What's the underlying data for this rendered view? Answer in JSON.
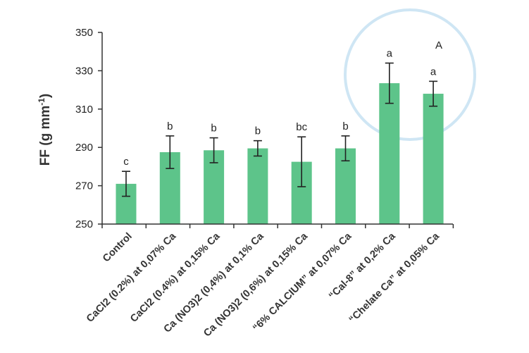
{
  "chart_data": {
    "type": "bar",
    "ylabel": "FF (g mm",
    "ylabel_sup": "-1",
    "ylabel_close": ")",
    "ylim": [
      250,
      350
    ],
    "yticks": [
      250,
      270,
      290,
      310,
      330,
      350
    ],
    "grid": false,
    "categories": [
      "Control",
      "CaCl2 (0.2%) at 0,07% Ca",
      "CaCl2 (0.4%) at 0,15% Ca",
      "Ca (NO3)2 (0,4%) at 0,1% Ca",
      "Ca (NO3)2 (0,6%) at 0,15% Ca",
      "“6% CALCIUM” at 0,07% Ca",
      "“Cal-8” at 0,2% Ca",
      "“Chelate Ca” at 0,05% Ca"
    ],
    "values": [
      271,
      287.5,
      288.5,
      289.5,
      282.5,
      289.5,
      323.5,
      318
    ],
    "error": [
      6.5,
      8.5,
      6.5,
      4,
      13,
      6.5,
      10.5,
      6.5
    ],
    "letters": [
      "c",
      "b",
      "b",
      "b",
      "bc",
      "b",
      "a",
      "a"
    ],
    "annotation": "A",
    "colors": {
      "bar": "#5dc48a",
      "axis": "#333333",
      "error": "#222222",
      "circle": "#cfe6f4"
    }
  }
}
